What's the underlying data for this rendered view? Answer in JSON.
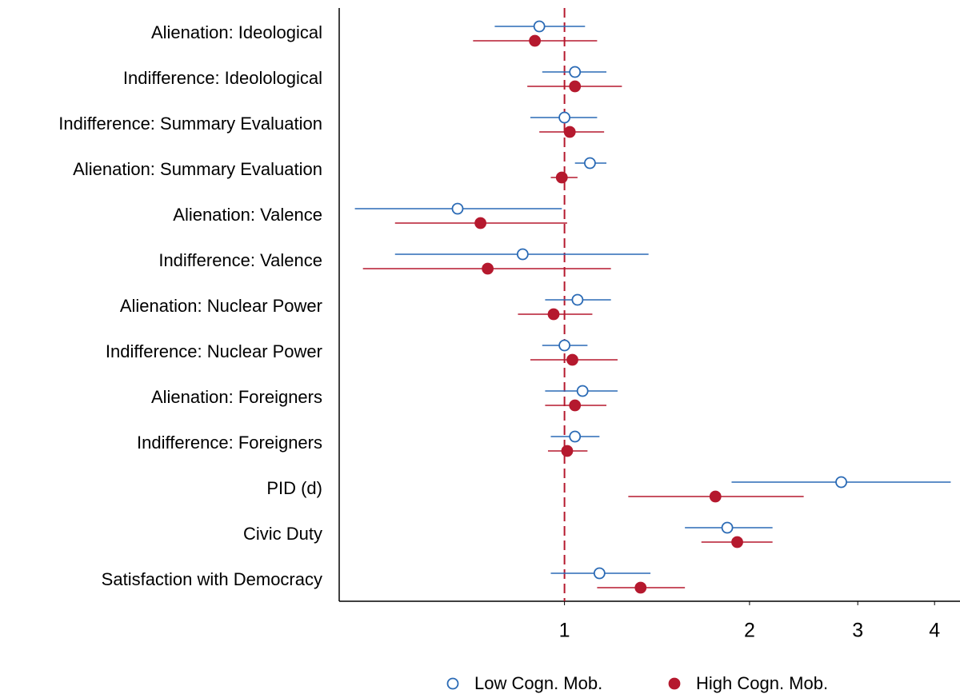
{
  "chart_data": {
    "type": "coefplot",
    "categories": [
      "Alienation: Ideological",
      "Indifference: Ideolological",
      "Indifference: Summary Evaluation",
      "Alienation: Summary Evaluation",
      "Alienation: Valence",
      "Indifference: Valence",
      "Alienation: Nuclear Power",
      "Indifference: Nuclear Power",
      "Alienation: Foreigners",
      "Indifference: Foreigners",
      "PID (d)",
      "Civic Duty",
      "Satisfaction with Democracy"
    ],
    "series": [
      {
        "name": "Low Cogn. Mob.",
        "color": "#2a6ab5",
        "marker": "open",
        "values": [
          0.91,
          1.04,
          1.0,
          1.1,
          0.67,
          0.855,
          1.05,
          1.0,
          1.07,
          1.04,
          2.82,
          1.84,
          1.14
        ],
        "lower": [
          0.77,
          0.92,
          0.88,
          1.04,
          0.456,
          0.53,
          0.93,
          0.92,
          0.93,
          0.95,
          1.87,
          1.57,
          0.95
        ],
        "upper": [
          1.08,
          1.17,
          1.13,
          1.17,
          0.99,
          1.37,
          1.19,
          1.09,
          1.22,
          1.14,
          4.25,
          2.18,
          1.38
        ]
      },
      {
        "name": "High Cogn. Mob.",
        "color": "#b5192e",
        "marker": "filled",
        "values": [
          0.895,
          1.04,
          1.02,
          0.99,
          0.73,
          0.75,
          0.96,
          1.03,
          1.04,
          1.01,
          1.76,
          1.91,
          1.33
        ],
        "lower": [
          0.71,
          0.87,
          0.91,
          0.95,
          0.53,
          0.47,
          0.84,
          0.88,
          0.93,
          0.94,
          1.27,
          1.67,
          1.13
        ],
        "upper": [
          1.13,
          1.24,
          1.16,
          1.05,
          1.01,
          1.19,
          1.11,
          1.22,
          1.17,
          1.09,
          2.45,
          2.18,
          1.57
        ]
      }
    ],
    "xlim": [
      0.43,
      4.4
    ],
    "xticks": [
      1,
      2,
      3,
      4
    ],
    "log_x": true,
    "reference_line": 1,
    "reference_color": "#b5192e",
    "legend": "bottom"
  }
}
